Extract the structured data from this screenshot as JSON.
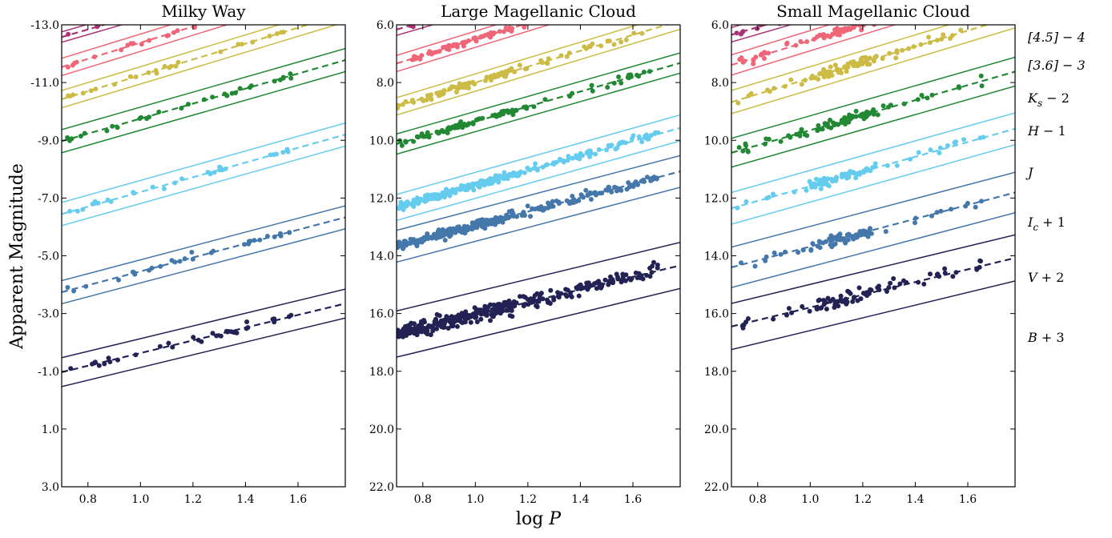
{
  "chart_data": {
    "type": "scatter",
    "ylabel": "Apparent Magnitude",
    "xlabel": "log P",
    "x_ticks": [
      0.8,
      1.0,
      1.2,
      1.4,
      1.6
    ],
    "x_tick_labels": [
      "0.8",
      "1.0",
      "1.2",
      "1.4",
      "1.6"
    ],
    "xlim": [
      0.7,
      1.78
    ],
    "grid": false,
    "panels": [
      {
        "title": "Milky Way",
        "ylim": [
          3.0,
          -13.0
        ],
        "y_ticks": [
          3,
          1,
          -1,
          -3,
          -5,
          -7,
          -9,
          -11,
          -13
        ],
        "y_tick_labels": [
          "3.0",
          "1.0",
          "-1.0",
          "-3.0",
          "-5.0",
          "-7.0",
          "-9.0",
          "-11.0",
          "-13.0"
        ]
      },
      {
        "title": "Large Magellanic Cloud",
        "ylim": [
          22.0,
          6.0
        ],
        "y_ticks": [
          22,
          20,
          18,
          16,
          14,
          12,
          10,
          8,
          6
        ],
        "y_tick_labels": [
          "22.0",
          "20.0",
          "18.0",
          "16.0",
          "14.0",
          "12.0",
          "10.0",
          "8.0",
          "6.0"
        ]
      },
      {
        "title": "Small Magellanic Cloud",
        "ylim": [
          22.0,
          6.0
        ],
        "y_ticks": [
          22,
          20,
          18,
          16,
          14,
          12,
          10,
          8,
          6
        ],
        "y_tick_labels": [
          "22.0",
          "20.0",
          "18.0",
          "16.0",
          "14.0",
          "12.0",
          "10.0",
          "8.0",
          "6.0"
        ]
      }
    ],
    "band_labels": [
      "[4.5] − 4",
      "[3.6] − 3",
      "K_s − 2",
      "H − 1",
      "J",
      "I_c + 1",
      "V + 2",
      "B + 3"
    ],
    "series": [
      {
        "name": "[4.5] − 4",
        "color": "#bbbbbb",
        "fits": [
          {
            "a": -12.34,
            "b": -2.85,
            "w": 0.18
          },
          {
            "a": 6.52,
            "b": -2.85,
            "w": 0.14
          },
          {
            "a": 6.7,
            "b": -2.85,
            "w": 0.2
          }
        ],
        "counts": [
          8,
          70,
          60
        ],
        "scatter": [
          0.12,
          0.15,
          0.25
        ]
      },
      {
        "name": "[3.6] − 3",
        "color": "#aa3377",
        "fits": [
          {
            "a": -10.72,
            "b": -2.65,
            "w": 0.18
          },
          {
            "a": 8.02,
            "b": -2.65,
            "w": 0.2
          },
          {
            "a": 8.2,
            "b": -2.65,
            "w": 0.25
          }
        ],
        "counts": [
          20,
          90,
          80
        ],
        "scatter": [
          0.12,
          0.15,
          0.25
        ]
      },
      {
        "name": "K_s − 2",
        "color": "#ee6677",
        "fits": [
          {
            "a": -9.58,
            "b": -2.8,
            "w": 0.3
          },
          {
            "a": 9.3,
            "b": -2.8,
            "w": 0.28
          },
          {
            "a": 9.35,
            "b": -2.8,
            "w": 0.35
          }
        ],
        "counts": [
          25,
          90,
          80
        ],
        "scatter": [
          0.12,
          0.15,
          0.25
        ]
      },
      {
        "name": "H − 1",
        "color": "#ccbb44",
        "fits": [
          {
            "a": -8.5,
            "b": -2.75,
            "w": 0.3
          },
          {
            "a": 10.75,
            "b": -2.75,
            "w": 0.3
          },
          {
            "a": 10.6,
            "b": -2.75,
            "w": 0.4
          }
        ],
        "counts": [
          25,
          90,
          80
        ],
        "scatter": [
          0.12,
          0.15,
          0.25
        ]
      },
      {
        "name": "J",
        "color": "#228833",
        "fits": [
          {
            "a": -7.15,
            "b": -2.6,
            "w": 0.4
          },
          {
            "a": 11.95,
            "b": -2.6,
            "w": 0.35
          },
          {
            "a": 12.25,
            "b": -2.6,
            "w": 0.5
          }
        ],
        "counts": [
          30,
          100,
          80
        ],
        "scatter": [
          0.12,
          0.15,
          0.25
        ]
      },
      {
        "name": "I_c + 1",
        "color": "#66ccee",
        "fits": [
          {
            "a": -4.66,
            "b": -2.55,
            "w": 0.4
          },
          {
            "a": 14.11,
            "b": -2.55,
            "w": 0.45
          },
          {
            "a": 14.14,
            "b": -2.55,
            "w": 0.55
          }
        ],
        "counts": [
          30,
          260,
          80
        ],
        "scatter": [
          0.15,
          0.18,
          0.25
        ]
      },
      {
        "name": "V + 2",
        "color": "#4477aa",
        "fits": [
          {
            "a": -2.06,
            "b": -2.4,
            "w": 0.4
          },
          {
            "a": 15.35,
            "b": -2.4,
            "w": 0.55
          },
          {
            "a": 16.08,
            "b": -2.4,
            "w": 0.7
          }
        ],
        "counts": [
          30,
          300,
          80
        ],
        "scatter": [
          0.18,
          0.22,
          0.28
        ]
      },
      {
        "name": "B + 3",
        "color": "#222255",
        "fits": [
          {
            "a": 0.57,
            "b": -2.2,
            "w": 0.5
          },
          {
            "a": 18.25,
            "b": -2.2,
            "w": 0.8
          },
          {
            "a": 17.99,
            "b": -2.2,
            "w": 0.8
          }
        ],
        "counts": [
          35,
          350,
          80
        ],
        "scatter": [
          0.22,
          0.35,
          0.35
        ]
      }
    ]
  }
}
